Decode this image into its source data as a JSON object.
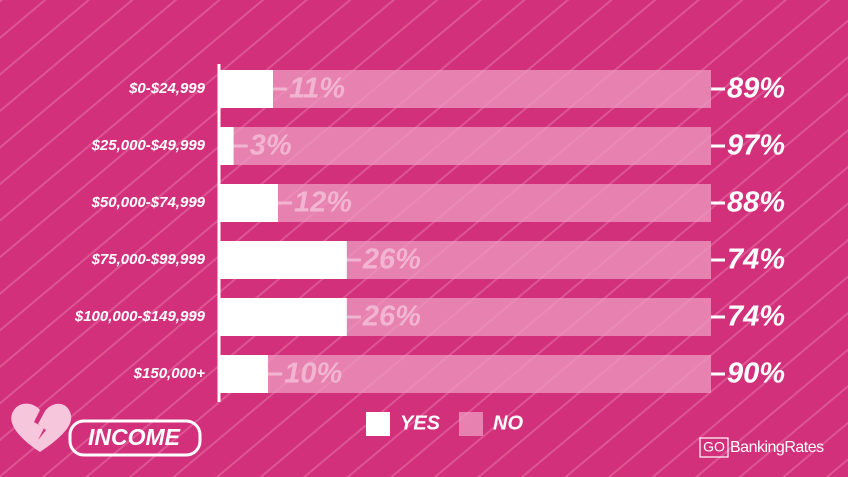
{
  "chart_data": {
    "type": "stacked-barh",
    "categories": [
      "$0-$24,999",
      "$25,000-$49,999",
      "$50,000-$74,999",
      "$75,000-$99,999",
      "$100,000-$149,999",
      "$150,000+"
    ],
    "series": [
      {
        "name": "YES",
        "color": "#ffffff",
        "values": [
          11,
          3,
          12,
          26,
          26,
          10
        ],
        "value_labels": [
          "11%",
          "3%",
          "12%",
          "26%",
          "26%",
          "10%"
        ]
      },
      {
        "name": "NO",
        "color": "#ee9cc2",
        "values": [
          89,
          97,
          88,
          74,
          74,
          90
        ],
        "value_labels": [
          "89%",
          "97%",
          "88%",
          "74%",
          "74%",
          "90%"
        ]
      }
    ],
    "xlim": [
      0,
      100
    ],
    "badge": "INCOME",
    "logo": {
      "prefix": "GO",
      "name": "BankingRates"
    }
  }
}
